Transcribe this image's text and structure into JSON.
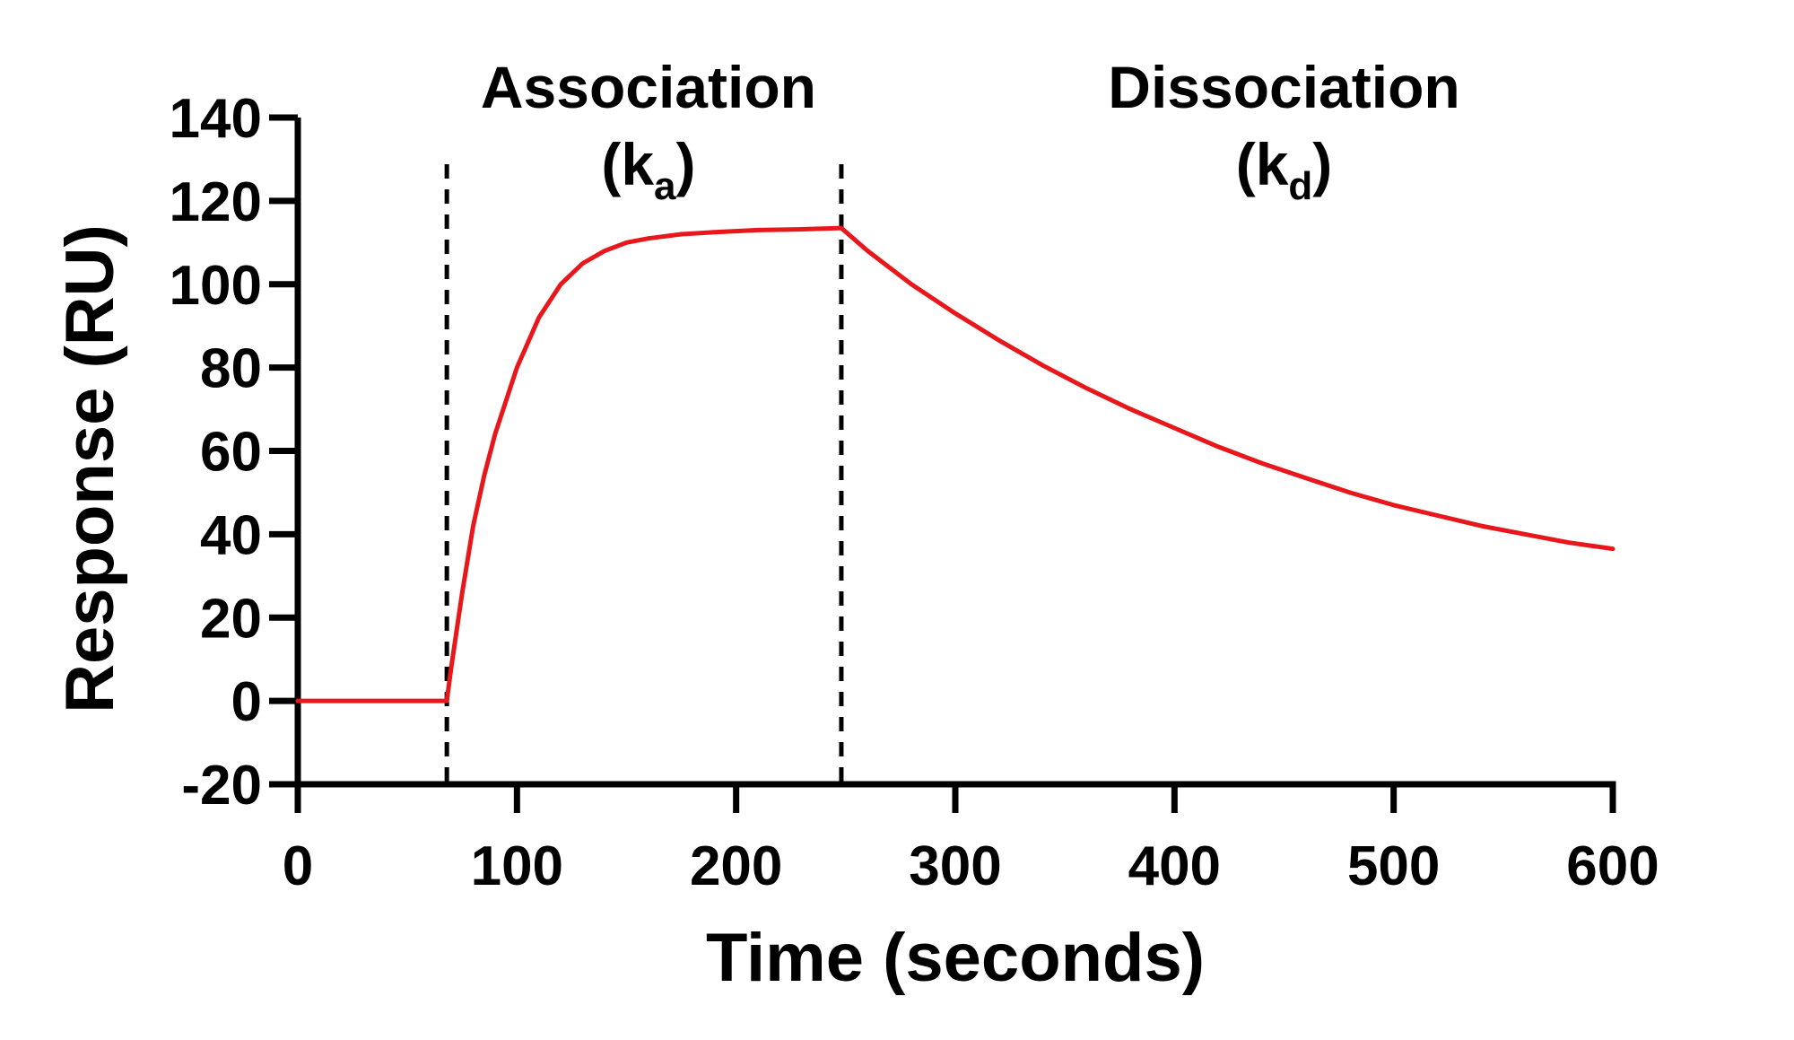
{
  "chart_data": {
    "type": "line",
    "xlabel": "Time (seconds)",
    "ylabel": "Response (RU)",
    "xlim": [
      0,
      600
    ],
    "ylim": [
      -20,
      140
    ],
    "xticks": [
      0,
      100,
      200,
      300,
      400,
      500,
      600
    ],
    "yticks": [
      -20,
      0,
      20,
      40,
      60,
      80,
      100,
      120,
      140
    ],
    "grid": false,
    "line_color": "#e8171b",
    "phase_markers": [
      68,
      248
    ],
    "annotations": [
      {
        "title": "Association",
        "paren_open": "(",
        "symbol": "k",
        "subscript": "a",
        "paren_close": ")",
        "x": 160
      },
      {
        "title": "Dissociation",
        "paren_open": "(",
        "symbol": "k",
        "subscript": "d",
        "paren_close": ")",
        "x": 450
      }
    ],
    "series": [
      {
        "x": [
          0,
          20,
          40,
          60,
          68,
          70,
          75,
          80,
          85,
          90,
          100,
          110,
          120,
          130,
          140,
          150,
          160,
          175,
          190,
          210,
          230,
          248,
          260,
          280,
          300,
          320,
          340,
          360,
          380,
          400,
          420,
          440,
          460,
          480,
          500,
          520,
          540,
          560,
          580,
          600
        ],
        "y": [
          0,
          0,
          0,
          0,
          0,
          8,
          26,
          42,
          54,
          64,
          80,
          92,
          100,
          105,
          108,
          110,
          111,
          112,
          112.5,
          113,
          113.2,
          113.5,
          108,
          100,
          93,
          86.5,
          80.5,
          75,
          70,
          65.5,
          61,
          57,
          53.5,
          50,
          47,
          44.5,
          42,
          40,
          38,
          36.5
        ]
      }
    ]
  }
}
